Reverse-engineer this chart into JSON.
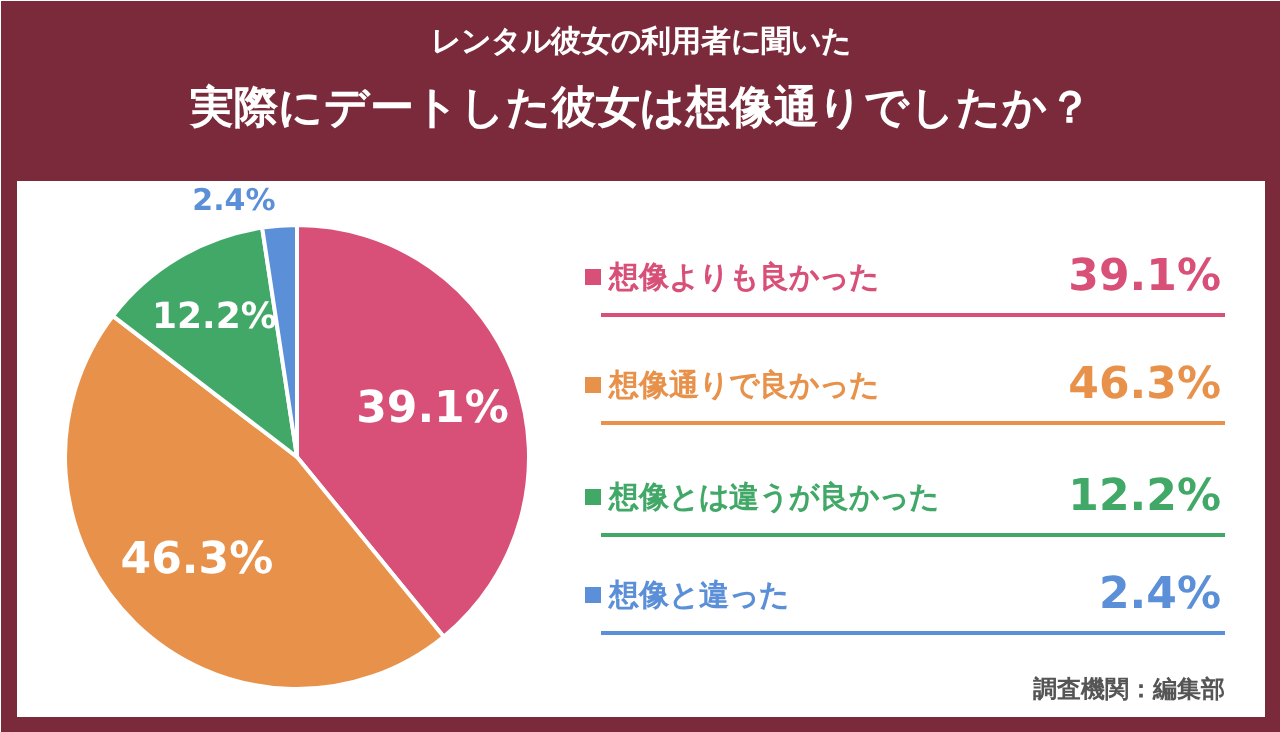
{
  "chart_data": {
    "type": "pie",
    "subtitle": "レンタル彼女の利用者に聞いた",
    "title": "実際にデートした彼女は想像通りでしたか？",
    "categories": [
      "想像よりも良かった",
      "想像通りで良かった",
      "想像とは違うが良かった",
      "想像と違った"
    ],
    "values": [
      39.1,
      46.3,
      12.2,
      2.4
    ],
    "value_labels": [
      "39.1%",
      "46.3%",
      "12.2%",
      "2.4%"
    ],
    "colors": [
      "#d84f78",
      "#e8914a",
      "#41a868",
      "#5b8fd8"
    ],
    "legend": "right",
    "annotations": [
      "調査機関：編集部"
    ]
  }
}
